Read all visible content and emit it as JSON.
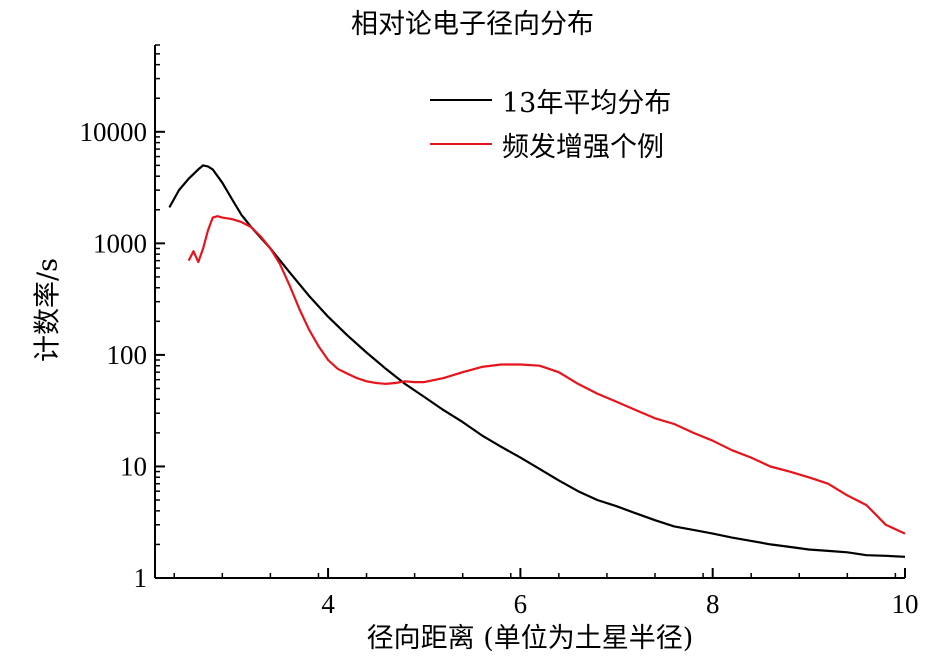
{
  "chart_data": {
    "type": "line",
    "title": "相对论电子径向分布",
    "xlabel": "径向距离 (单位为土星半径)",
    "ylabel": "计数率/s",
    "xlim": [
      2.2,
      10
    ],
    "ylim": [
      1,
      60000
    ],
    "yscale": "log",
    "xticks": [
      4,
      6,
      8,
      10
    ],
    "xtick_labels": [
      "4",
      "6",
      "8",
      "10"
    ],
    "yticks": [
      1,
      10,
      100,
      1000,
      10000
    ],
    "ytick_labels": [
      "1",
      "10",
      "100",
      "1000",
      "10000"
    ],
    "grid": false,
    "legend_position": "top-center",
    "series": [
      {
        "name": "13年平均分布",
        "color": "#000000",
        "x": [
          2.35,
          2.45,
          2.55,
          2.65,
          2.7,
          2.75,
          2.8,
          2.9,
          3.0,
          3.1,
          3.2,
          3.4,
          3.6,
          3.8,
          4.0,
          4.2,
          4.4,
          4.6,
          4.8,
          5.0,
          5.2,
          5.4,
          5.6,
          5.8,
          6.0,
          6.2,
          6.4,
          6.6,
          6.8,
          7.0,
          7.2,
          7.4,
          7.6,
          7.8,
          8.0,
          8.2,
          8.4,
          8.6,
          8.8,
          9.0,
          9.2,
          9.4,
          9.6,
          9.8,
          10.0
        ],
        "y": [
          2100,
          3000,
          3800,
          4600,
          5000,
          4900,
          4600,
          3500,
          2500,
          1800,
          1400,
          900,
          550,
          340,
          220,
          150,
          105,
          75,
          55,
          42,
          32,
          25,
          19,
          15,
          12,
          9.5,
          7.5,
          6.0,
          5.0,
          4.4,
          3.8,
          3.3,
          2.9,
          2.7,
          2.5,
          2.3,
          2.15,
          2.0,
          1.9,
          1.8,
          1.75,
          1.7,
          1.6,
          1.58,
          1.55
        ]
      },
      {
        "name": "频发增强个例",
        "color": "#e8141c",
        "x": [
          2.55,
          2.6,
          2.65,
          2.7,
          2.75,
          2.8,
          2.85,
          2.9,
          3.0,
          3.1,
          3.2,
          3.3,
          3.4,
          3.5,
          3.6,
          3.7,
          3.8,
          3.9,
          4.0,
          4.1,
          4.2,
          4.3,
          4.4,
          4.5,
          4.6,
          4.7,
          4.8,
          4.9,
          5.0,
          5.2,
          5.4,
          5.6,
          5.8,
          6.0,
          6.2,
          6.4,
          6.6,
          6.8,
          7.0,
          7.2,
          7.4,
          7.6,
          7.8,
          8.0,
          8.2,
          8.4,
          8.6,
          8.8,
          9.0,
          9.2,
          9.4,
          9.6,
          9.8,
          10.0
        ],
        "y": [
          700,
          850,
          680,
          900,
          1300,
          1700,
          1750,
          1700,
          1650,
          1550,
          1400,
          1150,
          900,
          650,
          420,
          260,
          170,
          120,
          90,
          75,
          68,
          62,
          58,
          56,
          55,
          56,
          58,
          57,
          57,
          62,
          70,
          78,
          82,
          82,
          80,
          70,
          55,
          45,
          38,
          32,
          27,
          24,
          20,
          17,
          14,
          12,
          10,
          9,
          8,
          7,
          5.5,
          4.5,
          3,
          2.5
        ]
      }
    ]
  }
}
